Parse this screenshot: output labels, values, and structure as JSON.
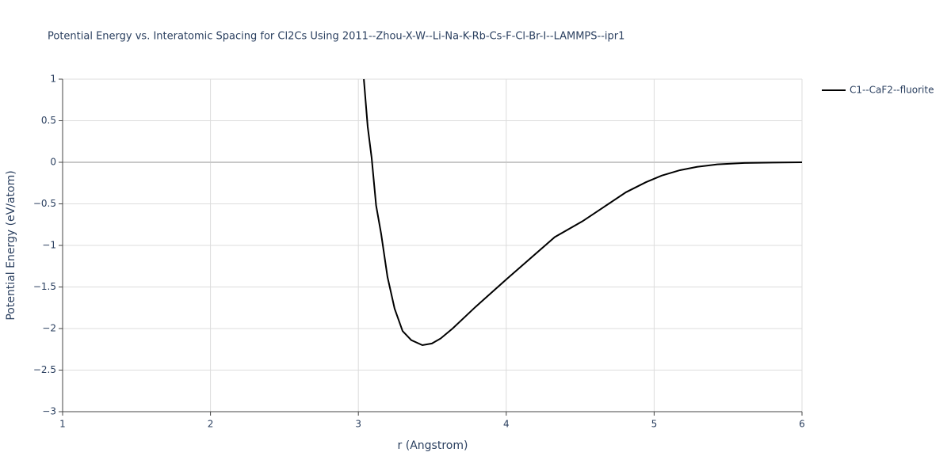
{
  "chart_data": {
    "type": "line",
    "title": "Potential Energy vs. Interatomic Spacing for Cl2Cs Using 2011--Zhou-X-W--Li-Na-K-Rb-Cs-F-Cl-Br-I--LAMMPS--ipr1",
    "x_label": "r (Angstrom)",
    "y_label": "Potential Energy (eV/atom)",
    "xlim": [
      1,
      6
    ],
    "ylim": [
      -3,
      1
    ],
    "xticks": [
      1,
      2,
      3,
      4,
      5,
      6
    ],
    "yticks": [
      {
        "value": -3,
        "label": "−3"
      },
      {
        "value": -2.5,
        "label": "−2.5"
      },
      {
        "value": -2,
        "label": "−2"
      },
      {
        "value": -1.5,
        "label": "−1.5"
      },
      {
        "value": -1,
        "label": "−1"
      },
      {
        "value": -0.5,
        "label": "−0.5"
      },
      0,
      0.5,
      1
    ],
    "grid": true,
    "legend": "top-right",
    "x": [
      3.037,
      3.063,
      3.09,
      3.12,
      3.154,
      3.197,
      3.245,
      3.299,
      3.358,
      3.433,
      3.497,
      3.556,
      3.637,
      3.792,
      4.006,
      4.328,
      4.515,
      4.692,
      4.81,
      4.944,
      5.051,
      5.175,
      5.29,
      5.427,
      5.61,
      5.8,
      6.0
    ],
    "series": [
      {
        "name": "C1--CaF2--fluorite",
        "color": "#000000",
        "values": [
          1.0,
          0.43,
          0.05,
          -0.52,
          -0.86,
          -1.38,
          -1.76,
          -2.03,
          -2.14,
          -2.2,
          -2.18,
          -2.12,
          -2.0,
          -1.74,
          -1.4,
          -0.9,
          -0.71,
          -0.5,
          -0.36,
          -0.24,
          -0.16,
          -0.095,
          -0.055,
          -0.025,
          -0.008,
          -0.003,
          0.0
        ]
      }
    ]
  }
}
